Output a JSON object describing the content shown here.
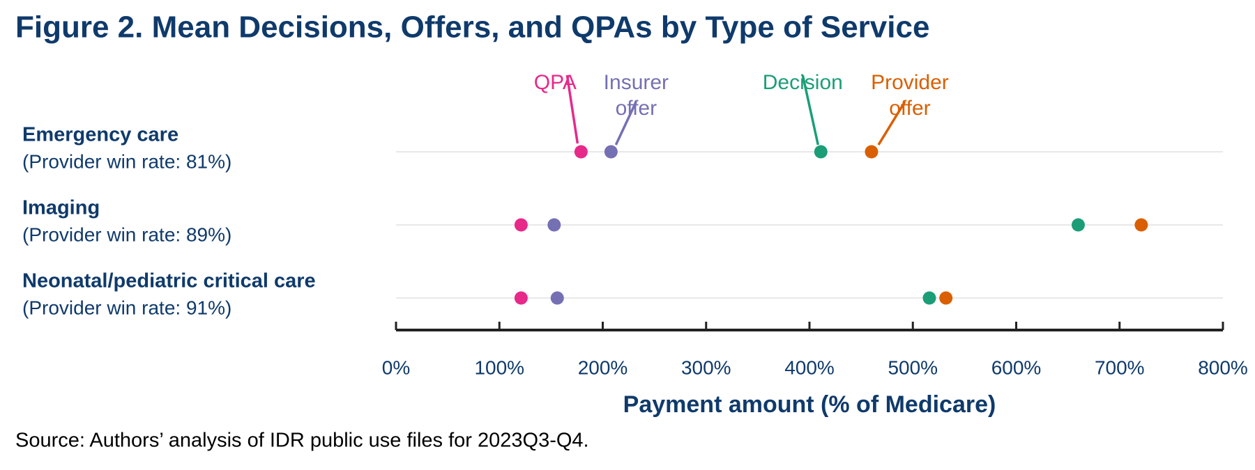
{
  "chart_data": {
    "type": "dot",
    "title": "Figure 2. Mean Decisions, Offers, and QPAs by Type of Service",
    "categories": [
      "Emergency care",
      "Imaging",
      "Neonatal/pediatric critical care"
    ],
    "category_notes": [
      "(Provider win rate: 81%)",
      "(Provider win rate: 89%)",
      "(Provider win rate: 91%)"
    ],
    "series": [
      {
        "name": "QPA",
        "color": "#e7298a",
        "values": [
          179,
          121,
          121
        ]
      },
      {
        "name": "Insurer offer",
        "color": "#7570b3",
        "values": [
          208,
          153,
          156
        ]
      },
      {
        "name": "Decision",
        "color": "#1b9e77",
        "values": [
          411,
          660,
          516
        ]
      },
      {
        "name": "Provider offer",
        "color": "#d95f02",
        "values": [
          460,
          721,
          532
        ]
      }
    ],
    "xlim": [
      0,
      800
    ],
    "xticks": [
      {
        "value": 0,
        "label": "0%"
      },
      {
        "value": 100,
        "label": "100%"
      },
      {
        "value": 200,
        "label": "200%"
      },
      {
        "value": 300,
        "label": "300%"
      },
      {
        "value": 400,
        "label": "400%"
      },
      {
        "value": 500,
        "label": "500%"
      },
      {
        "value": 600,
        "label": "600%"
      },
      {
        "value": 700,
        "label": "700%"
      },
      {
        "value": 800,
        "label": "800%"
      }
    ],
    "x_label": "Payment amount (% of Medicare)",
    "source": "Source: Authors’ analysis of IDR public use files for 2023Q3-Q4."
  }
}
